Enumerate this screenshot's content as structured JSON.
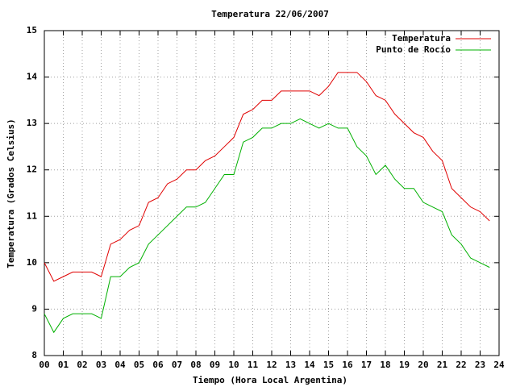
{
  "chart_data": {
    "type": "line",
    "title": "Temperatura 22/06/2007",
    "x_label": "Tiempo (Hora Local Argentina)",
    "y_label": "Temperatura (Grados Celsius)",
    "x": [
      0,
      0.5,
      1,
      1.5,
      2,
      2.5,
      3,
      3.5,
      4,
      4.5,
      5,
      5.5,
      6,
      6.5,
      7,
      7.5,
      8,
      8.5,
      9,
      9.5,
      10,
      10.5,
      11,
      11.5,
      12,
      12.5,
      13,
      13.5,
      14,
      14.5,
      15,
      15.5,
      16,
      16.5,
      17,
      17.5,
      18,
      18.5,
      19,
      19.5,
      20,
      20.5,
      21,
      21.5,
      22,
      22.5,
      23,
      23.5
    ],
    "series": [
      {
        "name": "Temperatura",
        "color": "#e00000",
        "values": [
          10.0,
          9.6,
          9.7,
          9.8,
          9.8,
          9.8,
          9.7,
          10.4,
          10.5,
          10.7,
          10.8,
          11.3,
          11.4,
          11.7,
          11.8,
          12.0,
          12.0,
          12.2,
          12.3,
          12.5,
          12.7,
          13.2,
          13.3,
          13.5,
          13.5,
          13.7,
          13.7,
          13.7,
          13.7,
          13.6,
          13.8,
          14.1,
          14.1,
          14.1,
          13.9,
          13.6,
          13.5,
          13.2,
          13.0,
          12.8,
          12.7,
          12.4,
          12.2,
          11.6,
          11.4,
          11.2,
          11.1,
          10.9
        ]
      },
      {
        "name": "Punto de Rocío",
        "color": "#00b000",
        "values": [
          8.9,
          8.5,
          8.8,
          8.9,
          8.9,
          8.9,
          8.8,
          9.7,
          9.7,
          9.9,
          10.0,
          10.4,
          10.6,
          10.8,
          11.0,
          11.2,
          11.2,
          11.3,
          11.6,
          11.9,
          11.9,
          12.6,
          12.7,
          12.9,
          12.9,
          13.0,
          13.0,
          13.1,
          13.0,
          12.9,
          13.0,
          12.9,
          12.9,
          12.5,
          12.3,
          11.9,
          12.1,
          11.8,
          11.6,
          11.6,
          11.3,
          11.2,
          11.1,
          10.6,
          10.4,
          10.1,
          10.0,
          9.9
        ]
      }
    ],
    "xlim": [
      0,
      24
    ],
    "xticks": [
      {
        "value": 0,
        "label": "00"
      },
      {
        "value": 1,
        "label": "01"
      },
      {
        "value": 2,
        "label": "02"
      },
      {
        "value": 3,
        "label": "03"
      },
      {
        "value": 4,
        "label": "04"
      },
      {
        "value": 5,
        "label": "05"
      },
      {
        "value": 6,
        "label": "06"
      },
      {
        "value": 7,
        "label": "07"
      },
      {
        "value": 8,
        "label": "08"
      },
      {
        "value": 9,
        "label": "09"
      },
      10,
      11,
      12,
      13,
      14,
      15,
      16,
      17,
      18,
      19,
      20,
      21,
      22,
      23,
      24
    ],
    "ylim": [
      8,
      15
    ],
    "yticks": [
      8,
      9,
      10,
      11,
      12,
      13,
      14,
      15
    ],
    "grid": true,
    "legend": "top-right"
  }
}
